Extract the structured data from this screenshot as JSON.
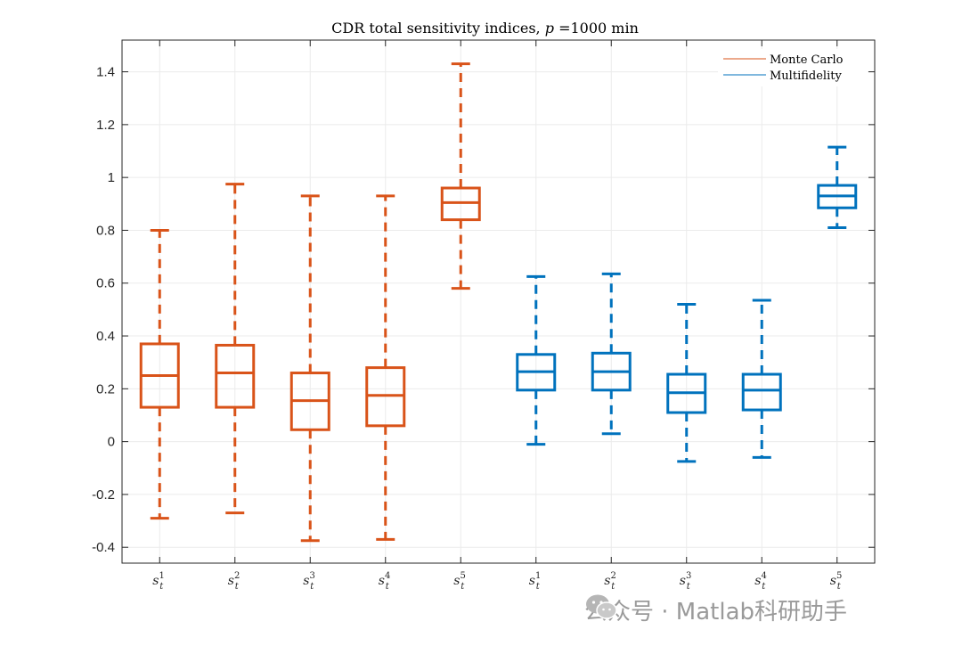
{
  "chart_data": {
    "type": "box",
    "title": "CDR total sensitivity indices, ",
    "title_var": "p",
    "title_tail": " =1000 min",
    "ylim": [
      -0.46,
      1.52
    ],
    "yticks": [
      -0.4,
      -0.2,
      0,
      0.2,
      0.4,
      0.6,
      0.8,
      1,
      1.2,
      1.4
    ],
    "ytick_labels": [
      "-0.4",
      "-0.2",
      "0",
      "0.2",
      "0.4",
      "0.6",
      "0.8",
      "1",
      "1.2",
      "1.4"
    ],
    "categories": [
      "s_t^1",
      "s_t^2",
      "s_t^3",
      "s_t^4",
      "s_t^5",
      "s_t^1",
      "s_t^2",
      "s_t^3",
      "s_t^4",
      "s_t^5"
    ],
    "category_base": "s",
    "category_sub": "t",
    "category_sups": [
      "1",
      "2",
      "3",
      "4",
      "5",
      "1",
      "2",
      "3",
      "4",
      "5"
    ],
    "series": [
      {
        "name": "Monte Carlo",
        "color": "#D95319",
        "positions": [
          1,
          2,
          3,
          4,
          5
        ],
        "boxes": [
          {
            "whisker_low": -0.29,
            "q1": 0.13,
            "median": 0.25,
            "q3": 0.37,
            "whisker_high": 0.8
          },
          {
            "whisker_low": -0.27,
            "q1": 0.13,
            "median": 0.26,
            "q3": 0.365,
            "whisker_high": 0.975
          },
          {
            "whisker_low": -0.375,
            "q1": 0.045,
            "median": 0.155,
            "q3": 0.26,
            "whisker_high": 0.93
          },
          {
            "whisker_low": -0.37,
            "q1": 0.06,
            "median": 0.175,
            "q3": 0.28,
            "whisker_high": 0.93
          },
          {
            "whisker_low": 0.58,
            "q1": 0.84,
            "median": 0.905,
            "q3": 0.96,
            "whisker_high": 1.43
          }
        ]
      },
      {
        "name": "Multifidelity",
        "color": "#0072BD",
        "positions": [
          6,
          7,
          8,
          9,
          10
        ],
        "boxes": [
          {
            "whisker_low": -0.01,
            "q1": 0.195,
            "median": 0.265,
            "q3": 0.33,
            "whisker_high": 0.625
          },
          {
            "whisker_low": 0.03,
            "q1": 0.195,
            "median": 0.265,
            "q3": 0.335,
            "whisker_high": 0.635
          },
          {
            "whisker_low": -0.075,
            "q1": 0.11,
            "median": 0.185,
            "q3": 0.255,
            "whisker_high": 0.52
          },
          {
            "whisker_low": -0.06,
            "q1": 0.12,
            "median": 0.195,
            "q3": 0.255,
            "whisker_high": 0.535
          },
          {
            "whisker_low": 0.81,
            "q1": 0.885,
            "median": 0.93,
            "q3": 0.97,
            "whisker_high": 1.115
          }
        ]
      }
    ],
    "legend": {
      "location": "top-right",
      "entries": [
        "Monte Carlo",
        "Multifidelity"
      ]
    },
    "grid": true,
    "axis_color": "#262626",
    "grid_color": "#ebebeb"
  },
  "watermark": {
    "text": "公众号 · Matlab科研助手",
    "icon": "wechat-icon"
  }
}
